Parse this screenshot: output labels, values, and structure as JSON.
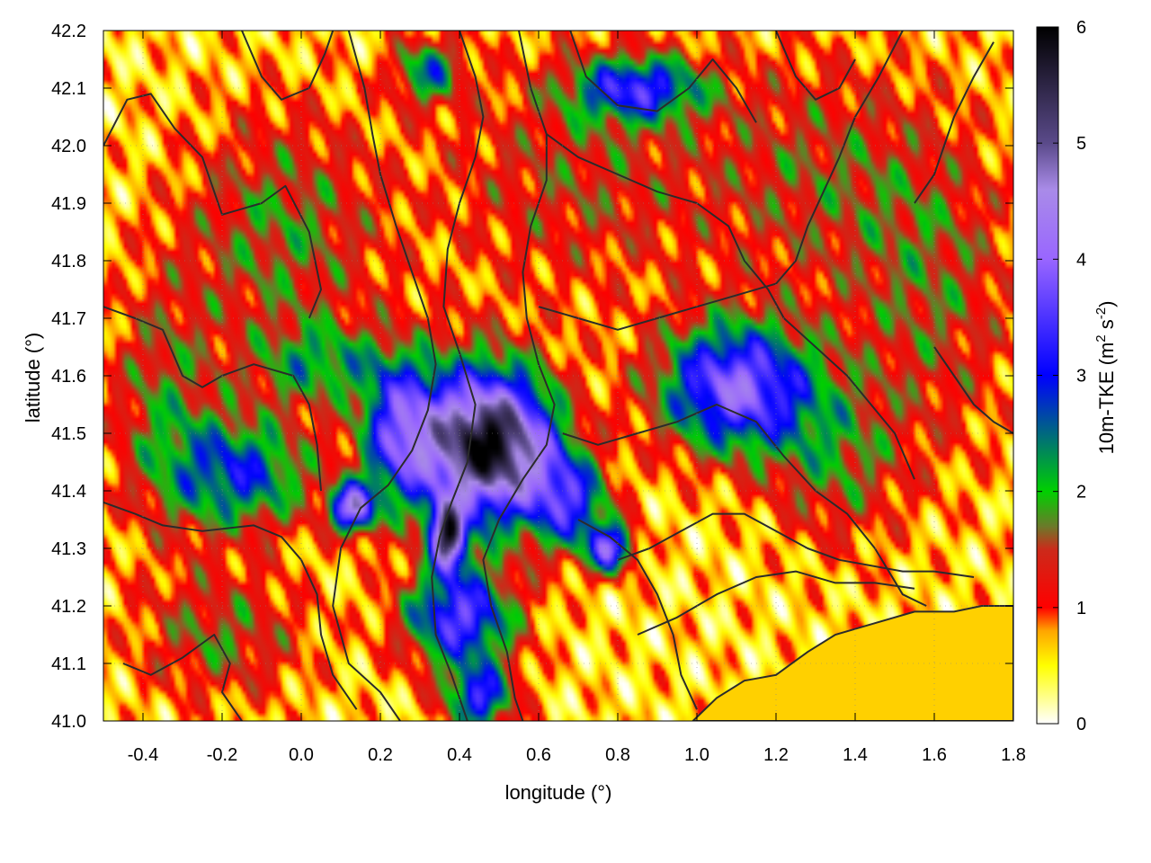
{
  "chart_data": {
    "type": "heatmap",
    "xlabel": "longitude (°)",
    "ylabel": "latitude (°)",
    "colorbar_label": "10m-TKE (m",
    "colorbar_label_sup1": "2",
    "colorbar_label_mid": " s",
    "colorbar_label_sup2": "-2",
    "colorbar_label_end": ")",
    "xlim": [
      -0.5,
      1.8
    ],
    "ylim": [
      41.0,
      42.2
    ],
    "clim": [
      0,
      6
    ],
    "x_ticks": [
      -0.4,
      -0.2,
      0.0,
      0.2,
      0.4,
      0.6,
      0.8,
      1.0,
      1.2,
      1.4,
      1.6,
      1.8
    ],
    "x_tick_labels": [
      "-0.4",
      "-0.2",
      "0.0",
      "0.2",
      "0.4",
      "0.6",
      "0.8",
      "1.0",
      "1.2",
      "1.4",
      "1.6",
      "1.8"
    ],
    "y_ticks": [
      41.0,
      41.1,
      41.2,
      41.3,
      41.4,
      41.5,
      41.6,
      41.7,
      41.8,
      41.9,
      42.0,
      42.1,
      42.2
    ],
    "y_tick_labels": [
      "41.0",
      "41.1",
      "41.2",
      "41.3",
      "41.4",
      "41.5",
      "41.6",
      "41.7",
      "41.8",
      "41.9",
      "42.0",
      "42.1",
      "42.2"
    ],
    "colorbar_ticks": [
      0,
      1,
      2,
      3,
      4,
      5,
      6
    ],
    "colorbar_tick_labels": [
      "0",
      "1",
      "2",
      "3",
      "4",
      "5",
      "6"
    ],
    "colormap": [
      {
        "v": 0.0,
        "c": "#ffffff"
      },
      {
        "v": 0.5,
        "c": "#ffff00"
      },
      {
        "v": 0.8,
        "c": "#ffa500"
      },
      {
        "v": 1.0,
        "c": "#ff0000"
      },
      {
        "v": 1.5,
        "c": "#cc2a1a"
      },
      {
        "v": 1.7,
        "c": "#6b7a2a"
      },
      {
        "v": 2.0,
        "c": "#00d000"
      },
      {
        "v": 3.0,
        "c": "#0000ff"
      },
      {
        "v": 4.0,
        "c": "#9966ff"
      },
      {
        "v": 4.6,
        "c": "#a98be8"
      },
      {
        "v": 5.0,
        "c": "#5a4a8a"
      },
      {
        "v": 6.0,
        "c": "#000000"
      }
    ],
    "sea_color": "#ffd000",
    "contour_color": "#2b2b2b",
    "hotspots": [
      {
        "lon": -0.15,
        "lat": 41.43,
        "amp": 2.2,
        "sx": 0.13,
        "sy": 0.07
      },
      {
        "lon": 0.05,
        "lat": 41.62,
        "amp": 1.4,
        "sx": 0.12,
        "sy": 0.05
      },
      {
        "lon": 0.25,
        "lat": 41.5,
        "amp": 3.0,
        "sx": 0.07,
        "sy": 0.09
      },
      {
        "lon": 0.42,
        "lat": 41.48,
        "amp": 3.8,
        "sx": 0.09,
        "sy": 0.1
      },
      {
        "lon": 0.37,
        "lat": 41.32,
        "amp": 4.2,
        "sx": 0.03,
        "sy": 0.04
      },
      {
        "lon": 0.13,
        "lat": 41.37,
        "amp": 3.6,
        "sx": 0.04,
        "sy": 0.03
      },
      {
        "lon": 0.55,
        "lat": 41.48,
        "amp": 3.2,
        "sx": 0.09,
        "sy": 0.09
      },
      {
        "lon": 0.68,
        "lat": 41.38,
        "amp": 2.4,
        "sx": 0.07,
        "sy": 0.06
      },
      {
        "lon": 0.78,
        "lat": 41.3,
        "amp": 3.0,
        "sx": 0.04,
        "sy": 0.03
      },
      {
        "lon": 1.1,
        "lat": 41.58,
        "amp": 3.4,
        "sx": 0.14,
        "sy": 0.08
      },
      {
        "lon": 0.4,
        "lat": 41.18,
        "amp": 3.0,
        "sx": 0.1,
        "sy": 0.06
      },
      {
        "lon": 0.45,
        "lat": 41.04,
        "amp": 2.6,
        "sx": 0.06,
        "sy": 0.04
      },
      {
        "lon": 0.85,
        "lat": 42.1,
        "amp": 2.4,
        "sx": 0.12,
        "sy": 0.04
      },
      {
        "lon": 0.32,
        "lat": 42.13,
        "amp": 1.8,
        "sx": 0.06,
        "sy": 0.04
      },
      {
        "lon": -0.05,
        "lat": 41.85,
        "amp": 1.2,
        "sx": 0.18,
        "sy": 0.15
      },
      {
        "lon": -0.35,
        "lat": 41.55,
        "amp": 1.1,
        "sx": 0.1,
        "sy": 0.15
      },
      {
        "lon": -0.2,
        "lat": 41.15,
        "amp": 1.1,
        "sx": 0.15,
        "sy": 0.08
      },
      {
        "lon": 0.7,
        "lat": 41.95,
        "amp": 0.9,
        "sx": 0.25,
        "sy": 0.15
      },
      {
        "lon": 1.35,
        "lat": 41.45,
        "amp": 1.1,
        "sx": 0.12,
        "sy": 0.1
      },
      {
        "lon": 1.6,
        "lat": 41.75,
        "amp": 1.0,
        "sx": 0.15,
        "sy": 0.2
      },
      {
        "lon": 1.3,
        "lat": 41.95,
        "amp": 0.9,
        "sx": 0.2,
        "sy": 0.15
      }
    ],
    "coastline": [
      [
        0.99,
        41.0
      ],
      [
        1.05,
        41.04
      ],
      [
        1.12,
        41.07
      ],
      [
        1.2,
        41.08
      ],
      [
        1.28,
        41.12
      ],
      [
        1.35,
        41.15
      ],
      [
        1.45,
        41.17
      ],
      [
        1.55,
        41.19
      ],
      [
        1.65,
        41.19
      ],
      [
        1.72,
        41.2
      ],
      [
        1.8,
        41.2
      ],
      [
        1.8,
        41.0
      ]
    ],
    "contours": [
      [
        [
          -0.5,
          42.0
        ],
        [
          -0.44,
          42.08
        ],
        [
          -0.38,
          42.09
        ],
        [
          -0.32,
          42.03
        ],
        [
          -0.25,
          41.98
        ],
        [
          -0.2,
          41.88
        ],
        [
          -0.1,
          41.9
        ],
        [
          -0.04,
          41.93
        ],
        [
          0.02,
          41.85
        ],
        [
          0.05,
          41.75
        ],
        [
          0.02,
          41.7
        ]
      ],
      [
        [
          -0.5,
          41.72
        ],
        [
          -0.42,
          41.7
        ],
        [
          -0.35,
          41.68
        ],
        [
          -0.3,
          41.6
        ],
        [
          -0.25,
          41.58
        ],
        [
          -0.2,
          41.6
        ],
        [
          -0.12,
          41.62
        ],
        [
          -0.02,
          41.6
        ],
        [
          0.02,
          41.55
        ],
        [
          0.04,
          41.48
        ],
        [
          0.05,
          41.4
        ]
      ],
      [
        [
          -0.5,
          41.38
        ],
        [
          -0.42,
          41.36
        ],
        [
          -0.35,
          41.34
        ],
        [
          -0.25,
          41.33
        ],
        [
          -0.12,
          41.34
        ],
        [
          -0.05,
          41.32
        ],
        [
          0.0,
          41.28
        ],
        [
          0.04,
          41.22
        ],
        [
          0.05,
          41.15
        ],
        [
          0.08,
          41.08
        ],
        [
          0.14,
          41.02
        ]
      ],
      [
        [
          -0.45,
          41.1
        ],
        [
          -0.38,
          41.08
        ],
        [
          -0.3,
          41.11
        ],
        [
          -0.22,
          41.15
        ],
        [
          -0.18,
          41.1
        ],
        [
          -0.2,
          41.05
        ],
        [
          -0.15,
          41.0
        ]
      ],
      [
        [
          0.12,
          42.2
        ],
        [
          0.16,
          42.1
        ],
        [
          0.18,
          42.02
        ],
        [
          0.2,
          41.95
        ],
        [
          0.24,
          41.86
        ],
        [
          0.28,
          41.78
        ],
        [
          0.32,
          41.7
        ],
        [
          0.34,
          41.62
        ],
        [
          0.32,
          41.54
        ],
        [
          0.28,
          41.47
        ],
        [
          0.22,
          41.41
        ],
        [
          0.15,
          41.37
        ],
        [
          0.1,
          41.3
        ],
        [
          0.08,
          41.2
        ],
        [
          0.12,
          41.1
        ],
        [
          0.2,
          41.05
        ],
        [
          0.25,
          41.0
        ]
      ],
      [
        [
          0.4,
          42.2
        ],
        [
          0.44,
          42.12
        ],
        [
          0.46,
          42.05
        ],
        [
          0.44,
          41.98
        ],
        [
          0.4,
          41.9
        ],
        [
          0.37,
          41.82
        ],
        [
          0.36,
          41.72
        ],
        [
          0.4,
          41.64
        ],
        [
          0.44,
          41.55
        ],
        [
          0.42,
          41.45
        ],
        [
          0.38,
          41.38
        ],
        [
          0.35,
          41.32
        ],
        [
          0.33,
          41.25
        ],
        [
          0.34,
          41.15
        ],
        [
          0.38,
          41.08
        ],
        [
          0.42,
          41.0
        ]
      ],
      [
        [
          0.55,
          42.2
        ],
        [
          0.58,
          42.1
        ],
        [
          0.62,
          42.02
        ],
        [
          0.62,
          41.94
        ],
        [
          0.58,
          41.86
        ],
        [
          0.56,
          41.78
        ],
        [
          0.57,
          41.7
        ],
        [
          0.6,
          41.62
        ],
        [
          0.64,
          41.55
        ],
        [
          0.62,
          41.48
        ],
        [
          0.56,
          41.42
        ],
        [
          0.5,
          41.35
        ],
        [
          0.46,
          41.28
        ],
        [
          0.48,
          41.2
        ],
        [
          0.52,
          41.12
        ],
        [
          0.54,
          41.04
        ],
        [
          0.56,
          41.0
        ]
      ],
      [
        [
          0.68,
          42.2
        ],
        [
          0.72,
          42.12
        ],
        [
          0.8,
          42.07
        ],
        [
          0.9,
          42.06
        ],
        [
          0.98,
          42.1
        ],
        [
          1.04,
          42.15
        ],
        [
          1.1,
          42.1
        ],
        [
          1.15,
          42.04
        ]
      ],
      [
        [
          0.62,
          42.02
        ],
        [
          0.7,
          41.98
        ],
        [
          0.8,
          41.95
        ],
        [
          0.9,
          41.92
        ],
        [
          1.0,
          41.9
        ],
        [
          1.08,
          41.86
        ],
        [
          1.12,
          41.8
        ],
        [
          1.18,
          41.75
        ],
        [
          1.22,
          41.7
        ],
        [
          1.3,
          41.65
        ],
        [
          1.38,
          41.6
        ],
        [
          1.44,
          41.55
        ],
        [
          1.5,
          41.5
        ],
        [
          1.55,
          41.42
        ]
      ],
      [
        [
          0.6,
          41.72
        ],
        [
          0.7,
          41.7
        ],
        [
          0.8,
          41.68
        ],
        [
          0.9,
          41.7
        ],
        [
          1.0,
          41.72
        ],
        [
          1.1,
          41.74
        ],
        [
          1.2,
          41.76
        ],
        [
          1.25,
          41.8
        ],
        [
          1.28,
          41.86
        ],
        [
          1.32,
          41.92
        ],
        [
          1.36,
          41.98
        ],
        [
          1.4,
          42.05
        ],
        [
          1.46,
          42.12
        ],
        [
          1.52,
          42.2
        ]
      ],
      [
        [
          0.66,
          41.5
        ],
        [
          0.75,
          41.48
        ],
        [
          0.85,
          41.5
        ],
        [
          0.95,
          41.52
        ],
        [
          1.05,
          41.55
        ],
        [
          1.15,
          41.52
        ],
        [
          1.22,
          41.46
        ],
        [
          1.3,
          41.4
        ],
        [
          1.38,
          41.36
        ],
        [
          1.45,
          41.3
        ],
        [
          1.52,
          41.22
        ],
        [
          1.58,
          41.2
        ]
      ],
      [
        [
          0.7,
          41.35
        ],
        [
          0.78,
          41.32
        ],
        [
          0.85,
          41.28
        ],
        [
          0.9,
          41.22
        ],
        [
          0.94,
          41.15
        ],
        [
          0.96,
          41.08
        ],
        [
          1.0,
          41.02
        ]
      ],
      [
        [
          0.8,
          41.28
        ],
        [
          0.88,
          41.3
        ],
        [
          0.96,
          41.33
        ],
        [
          1.04,
          41.36
        ],
        [
          1.12,
          41.36
        ],
        [
          1.2,
          41.33
        ],
        [
          1.28,
          41.3
        ],
        [
          1.36,
          41.28
        ],
        [
          1.44,
          41.27
        ],
        [
          1.52,
          41.26
        ],
        [
          1.6,
          41.26
        ],
        [
          1.7,
          41.25
        ]
      ],
      [
        [
          0.85,
          41.15
        ],
        [
          0.95,
          41.18
        ],
        [
          1.05,
          41.22
        ],
        [
          1.15,
          41.25
        ],
        [
          1.25,
          41.26
        ],
        [
          1.35,
          41.24
        ],
        [
          1.45,
          41.24
        ],
        [
          1.55,
          41.23
        ]
      ],
      [
        [
          1.55,
          41.9
        ],
        [
          1.6,
          41.95
        ],
        [
          1.65,
          42.05
        ],
        [
          1.7,
          42.12
        ],
        [
          1.75,
          42.18
        ]
      ],
      [
        [
          1.6,
          41.65
        ],
        [
          1.65,
          41.6
        ],
        [
          1.7,
          41.55
        ],
        [
          1.75,
          41.52
        ],
        [
          1.8,
          41.5
        ]
      ],
      [
        [
          -0.15,
          42.2
        ],
        [
          -0.1,
          42.12
        ],
        [
          -0.05,
          42.08
        ],
        [
          0.02,
          42.1
        ],
        [
          0.06,
          42.16
        ],
        [
          0.08,
          42.2
        ]
      ],
      [
        [
          1.2,
          42.2
        ],
        [
          1.25,
          42.12
        ],
        [
          1.3,
          42.08
        ],
        [
          1.36,
          42.1
        ],
        [
          1.4,
          42.15
        ]
      ]
    ]
  }
}
